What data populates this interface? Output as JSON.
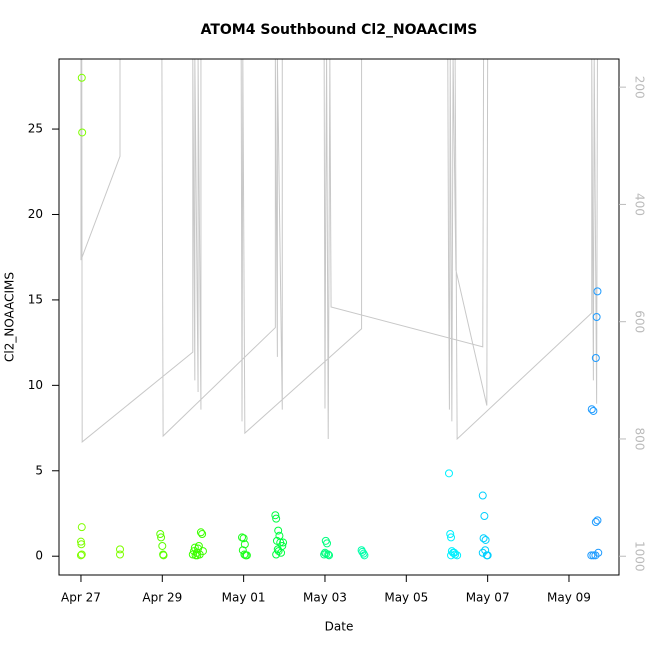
{
  "chart_data": {
    "type": "scatter",
    "title": "ATOM4 Southbound Cl2_NOAACIMS",
    "x_label": "Date",
    "y_label": "Cl2_NOAACIMS",
    "xlim": [
      -0.54,
      13.23
    ],
    "ylim": [
      -1.1,
      29.1
    ],
    "y2lim": [
      1032,
      152
    ],
    "xticks": [
      {
        "value": 0,
        "label": "Apr 27"
      },
      {
        "value": 2,
        "label": "Apr 29"
      },
      {
        "value": 4,
        "label": "May 01"
      },
      {
        "value": 6,
        "label": "May 03"
      },
      {
        "value": 8,
        "label": "May 05"
      },
      {
        "value": 10,
        "label": "May 07"
      },
      {
        "value": 12,
        "label": "May 09"
      }
    ],
    "yticks": [
      0,
      5,
      10,
      15,
      20,
      25
    ],
    "y2ticks": [
      200,
      400,
      600,
      800,
      1000
    ],
    "series": [
      {
        "color": "#7FFF00",
        "x": [
          0.02,
          0.03,
          0.02,
          0.0,
          0.01,
          0.02,
          0.0,
          0.96,
          0.96
        ],
        "values": [
          28,
          24.8,
          1.7,
          0.85,
          0.7,
          0.1,
          0.05,
          0.4,
          0.1
        ]
      },
      {
        "color": "#5CFF00",
        "x": [
          1.95,
          1.97,
          2.0,
          2.02,
          2.03
        ],
        "values": [
          1.3,
          1.1,
          0.6,
          0.1,
          0.05
        ]
      },
      {
        "color": "#3DFF00",
        "x": [
          2.75,
          2.78,
          2.8,
          2.82,
          2.85,
          2.88,
          2.9,
          2.95,
          2.98,
          3.0,
          2.92,
          2.86
        ],
        "values": [
          0.1,
          0.3,
          0.5,
          0.05,
          0.2,
          0.45,
          0.6,
          1.4,
          1.3,
          0.3,
          0.1,
          0.05
        ]
      },
      {
        "color": "#1AFF1A",
        "x": [
          3.96,
          4.0,
          4.03,
          3.98,
          4.02,
          4.05,
          4.08
        ],
        "values": [
          1.1,
          1.05,
          0.7,
          0.35,
          0.1,
          0.05,
          0.05
        ]
      },
      {
        "color": "#00FF40",
        "x": [
          4.78,
          4.8,
          4.85,
          4.88,
          4.82,
          4.9,
          4.95,
          4.97,
          4.84,
          4.92,
          4.8,
          4.86
        ],
        "values": [
          2.4,
          2.2,
          1.5,
          1.2,
          0.9,
          0.8,
          0.6,
          0.8,
          0.4,
          0.2,
          0.1,
          0.3
        ]
      },
      {
        "color": "#00FF80",
        "x": [
          6.02,
          6.05,
          6.0,
          6.03,
          6.08,
          6.1,
          5.98
        ],
        "values": [
          0.9,
          0.75,
          0.2,
          0.15,
          0.1,
          0.05,
          0.1
        ]
      },
      {
        "color": "#00FFAA",
        "x": [
          6.9,
          6.92,
          6.95,
          6.97
        ],
        "values": [
          0.35,
          0.25,
          0.15,
          0.05
        ]
      },
      {
        "color": "#00F0FF",
        "x": [
          9.05,
          9.08,
          9.1,
          9.12,
          9.15,
          9.2,
          9.25,
          9.1,
          9.18
        ],
        "values": [
          4.85,
          1.3,
          1.1,
          0.3,
          0.2,
          0.1,
          0.05,
          0.05,
          0.2
        ]
      },
      {
        "color": "#00D0FF",
        "x": [
          9.88,
          9.92,
          9.9,
          9.95,
          9.94,
          9.88,
          9.98,
          10.0
        ],
        "values": [
          3.55,
          2.35,
          1.05,
          0.95,
          0.35,
          0.2,
          0.05,
          0.05
        ]
      },
      {
        "color": "#1E9BFF",
        "x": [
          12.7,
          12.68,
          12.66,
          12.56,
          12.6,
          12.7,
          12.66,
          12.72,
          12.55,
          12.6,
          12.65
        ],
        "values": [
          15.5,
          14.0,
          11.6,
          8.6,
          8.5,
          2.1,
          2.0,
          0.2,
          0.05,
          0.05,
          0.05
        ]
      },
      {
        "type": "line",
        "axis": "y2",
        "color": "#C8C8C8",
        "x": [
          0.0,
          0.0,
          0.96,
          0.96,
          null,
          0.02,
          0.03,
          2.75,
          2.75,
          2.8,
          2.8,
          2.88,
          2.88,
          2.95,
          2.95,
          null,
          1.99,
          2.02,
          4.78,
          4.78,
          4.83,
          4.83,
          4.95,
          4.95,
          null,
          3.94,
          3.96,
          3.98,
          4.03,
          6.9,
          6.9,
          null,
          5.98,
          6.0,
          6.02,
          6.04,
          6.08,
          6.12,
          6.15,
          9.88,
          9.9,
          null,
          9.02,
          9.04,
          9.06,
          9.08,
          9.12,
          9.15,
          9.22,
          9.98,
          10.0,
          null,
          9.2,
          9.25,
          12.56,
          12.56,
          12.6,
          12.62,
          12.68,
          12.7
        ],
        "values": [
          150,
          495,
          318,
          150,
          null,
          150,
          805,
          652,
          150,
          700,
          150,
          720,
          150,
          750,
          150,
          null,
          150,
          795,
          610,
          150,
          660,
          150,
          750,
          150,
          null,
          150,
          770,
          150,
          790,
          612,
          150,
          null,
          150,
          748,
          380,
          150,
          800,
          150,
          575,
          643,
          150,
          null,
          150,
          530,
          750,
          150,
          770,
          150,
          512,
          743,
          150,
          null,
          150,
          800,
          585,
          150,
          700,
          150,
          740,
          150
        ]
      }
    ]
  }
}
